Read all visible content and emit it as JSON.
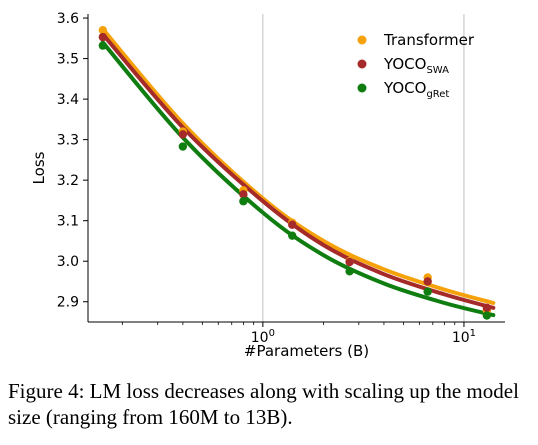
{
  "chart_data": {
    "type": "scatter",
    "x_scale": "log",
    "xlabel": "#Parameters (B)",
    "ylabel": "Loss",
    "ylim": [
      2.85,
      3.61
    ],
    "xlim": [
      0.135,
      16
    ],
    "y_ticks": [
      "2.9",
      "3.0",
      "3.1",
      "3.2",
      "3.3",
      "3.4",
      "3.5",
      "3.6"
    ],
    "x_ticks": [
      {
        "value": 1,
        "base": "10",
        "exp": "0"
      },
      {
        "value": 10,
        "base": "10",
        "exp": "1"
      }
    ],
    "grid": "vertical lines at major x ticks",
    "legend_position": "top-right",
    "series": [
      {
        "name": "Transformer",
        "name_main": "Transformer",
        "name_sub": "",
        "color": "#f5a10a",
        "points": [
          [
            0.16,
            3.57
          ],
          [
            0.4,
            3.32
          ],
          [
            0.8,
            3.175
          ],
          [
            1.4,
            3.095
          ],
          [
            2.7,
            3.0
          ],
          [
            6.6,
            2.96
          ],
          [
            13,
            2.878
          ]
        ],
        "fit": [
          [
            0.16,
            3.573
          ],
          [
            0.4,
            3.34
          ],
          [
            1,
            3.155
          ],
          [
            2,
            3.05
          ],
          [
            4,
            2.98
          ],
          [
            8,
            2.93
          ],
          [
            14,
            2.897
          ]
        ]
      },
      {
        "name": "YOCO_SWA",
        "name_main": "YOCO",
        "name_sub": "SWA",
        "color": "#a52a2a",
        "points": [
          [
            0.16,
            3.553
          ],
          [
            0.4,
            3.313
          ],
          [
            0.8,
            3.165
          ],
          [
            1.4,
            3.09
          ],
          [
            2.7,
            2.998
          ],
          [
            6.6,
            2.95
          ],
          [
            13,
            2.885
          ]
        ],
        "fit": [
          [
            0.16,
            3.56
          ],
          [
            0.4,
            3.33
          ],
          [
            1,
            3.148
          ],
          [
            2,
            3.04
          ],
          [
            4,
            2.968
          ],
          [
            8,
            2.918
          ],
          [
            14,
            2.885
          ]
        ]
      },
      {
        "name": "YOCO_gRet",
        "name_main": "YOCO",
        "name_sub": "gRet",
        "color": "#0f7d0f",
        "points": [
          [
            0.16,
            3.532
          ],
          [
            0.4,
            3.283
          ],
          [
            0.8,
            3.148
          ],
          [
            1.4,
            3.063
          ],
          [
            2.7,
            2.975
          ],
          [
            6.6,
            2.925
          ],
          [
            13,
            2.866
          ]
        ],
        "fit": [
          [
            0.16,
            3.54
          ],
          [
            0.4,
            3.305
          ],
          [
            1,
            3.12
          ],
          [
            2,
            3.015
          ],
          [
            4,
            2.945
          ],
          [
            8,
            2.897
          ],
          [
            14,
            2.867
          ]
        ]
      }
    ]
  },
  "caption": "Figure 4: LM loss decreases along with scaling up the model size (ranging from 160M to 13B)."
}
